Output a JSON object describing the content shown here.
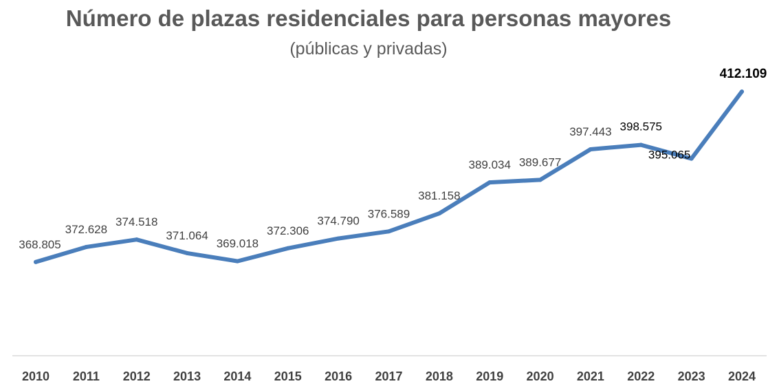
{
  "chart_data": {
    "type": "line",
    "title": "Número de plazas residenciales para personas mayores",
    "subtitle": "(públicas y privadas)",
    "xlabel": "",
    "ylabel": "",
    "grid": false,
    "legend": "none",
    "x": [
      "2010",
      "2011",
      "2012",
      "2013",
      "2014",
      "2015",
      "2016",
      "2017",
      "2018",
      "2019",
      "2020",
      "2021",
      "2022",
      "2023",
      "2024"
    ],
    "series": [
      {
        "color": "#4a7ebb",
        "values": [
          368805,
          372628,
          374518,
          371064,
          369018,
          372306,
          374790,
          376589,
          381158,
          389034,
          389677,
          397443,
          398575,
          395065,
          412109
        ],
        "labels": [
          "368.805",
          "372.628",
          "374.518",
          "371.064",
          "369.018",
          "372.306",
          "374.790",
          "376.589",
          "381.158",
          "389.034",
          "389.677",
          "397.443",
          "398.575",
          "395.065",
          "412.109"
        ]
      }
    ],
    "ylim": [
      345000,
      420000
    ],
    "colors": {
      "line": "#4a7ebb",
      "axis": "#d9d9d9",
      "text": "#595959"
    }
  }
}
